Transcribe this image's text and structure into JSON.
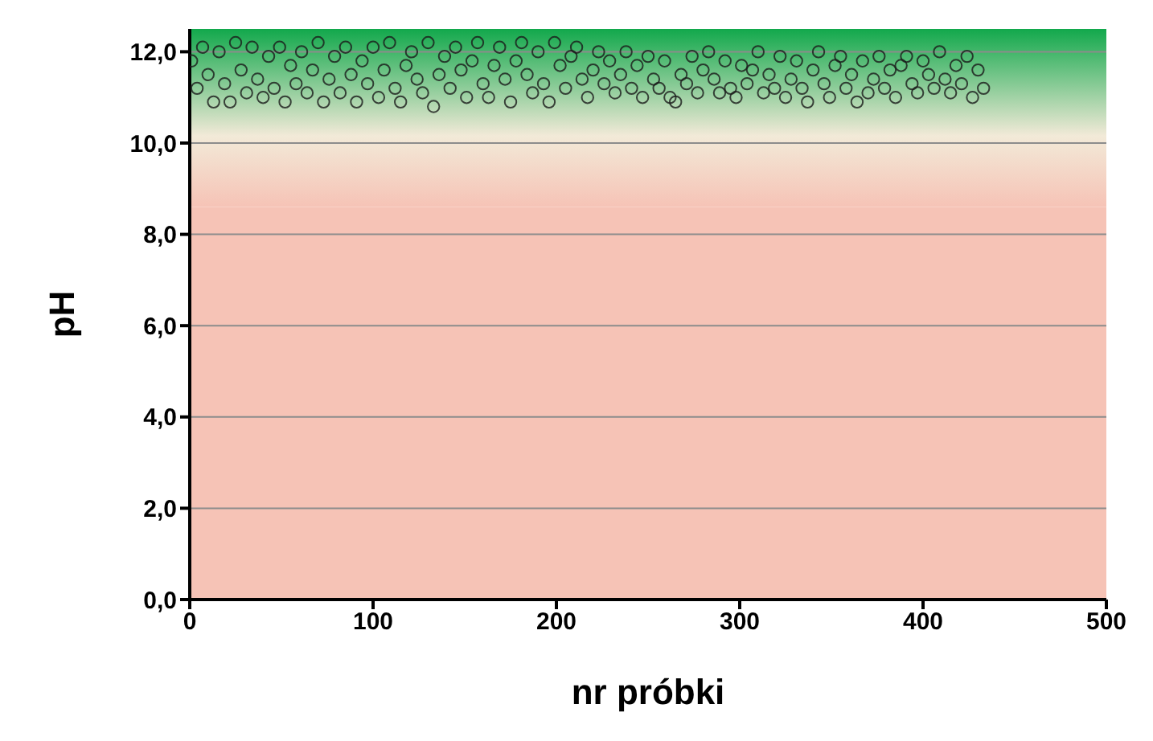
{
  "chart_data": {
    "type": "scatter",
    "xlabel": "nr próbki",
    "ylabel": "pH",
    "xlim": [
      0,
      500
    ],
    "xticks": [
      0,
      100,
      200,
      300,
      400,
      500
    ],
    "ylim": [
      0,
      12.5
    ],
    "yticks": [
      {
        "value": 0,
        "label": "0,0"
      },
      {
        "value": 2,
        "label": "2,0"
      },
      {
        "value": 4,
        "label": "4,0"
      },
      {
        "value": 6,
        "label": "6,0"
      },
      {
        "value": 8,
        "label": "8,0"
      },
      {
        "value": 10,
        "label": "10,0"
      },
      {
        "value": 12,
        "label": "12,0"
      }
    ],
    "grid": "y",
    "marker": "circle",
    "legend": false,
    "bands": [
      {
        "axis": "y",
        "from": 0,
        "to": 8.6,
        "color": "#f6c3b6"
      },
      {
        "axis": "y",
        "from": 8.6,
        "to": 12.5,
        "color": "#12a84c"
      }
    ],
    "series": [
      {
        "color": "#1a1a1a",
        "x": [
          1,
          4,
          7,
          10,
          13,
          16,
          19,
          22,
          25,
          28,
          31,
          34,
          37,
          40,
          43,
          46,
          49,
          52,
          55,
          58,
          61,
          64,
          67,
          70,
          73,
          76,
          79,
          82,
          85,
          88,
          91,
          94,
          97,
          100,
          103,
          106,
          109,
          112,
          115,
          118,
          121,
          124,
          127,
          130,
          133,
          136,
          139,
          142,
          145,
          148,
          151,
          154,
          157,
          160,
          163,
          166,
          169,
          172,
          175,
          178,
          181,
          184,
          187,
          190,
          193,
          196,
          199,
          202,
          205,
          208,
          211,
          214,
          217,
          220,
          223,
          226,
          229,
          232,
          235,
          238,
          241,
          244,
          247,
          250,
          253,
          256,
          259,
          262,
          265,
          268,
          271,
          274,
          277,
          280,
          283,
          286,
          289,
          292,
          295,
          298,
          301,
          304,
          307,
          310,
          313,
          316,
          319,
          322,
          325,
          328,
          331,
          334,
          337,
          340,
          343,
          346,
          349,
          352,
          355,
          358,
          361,
          364,
          367,
          370,
          373,
          376,
          379,
          382,
          385,
          388,
          391,
          394,
          397,
          400,
          403,
          406,
          409,
          412,
          415,
          418,
          421,
          424,
          427,
          430,
          433
        ],
        "values": [
          11.8,
          11.2,
          12.1,
          11.5,
          10.9,
          12.0,
          11.3,
          10.9,
          12.2,
          11.6,
          11.1,
          12.1,
          11.4,
          11.0,
          11.9,
          11.2,
          12.1,
          10.9,
          11.7,
          11.3,
          12.0,
          11.1,
          11.6,
          12.2,
          10.9,
          11.4,
          11.9,
          11.1,
          12.1,
          11.5,
          10.9,
          11.8,
          11.3,
          12.1,
          11.0,
          11.6,
          12.2,
          11.2,
          10.9,
          11.7,
          12.0,
          11.4,
          11.1,
          12.2,
          10.8,
          11.5,
          11.9,
          11.2,
          12.1,
          11.6,
          11.0,
          11.8,
          12.2,
          11.3,
          11.0,
          11.7,
          12.1,
          11.4,
          10.9,
          11.8,
          12.2,
          11.5,
          11.1,
          12.0,
          11.3,
          10.9,
          12.2,
          11.7,
          11.2,
          11.9,
          12.1,
          11.4,
          11.0,
          11.6,
          12.0,
          11.3,
          11.8,
          11.1,
          11.5,
          12.0,
          11.2,
          11.7,
          11.0,
          11.9,
          11.4,
          11.2,
          11.8,
          11.0,
          10.9,
          11.5,
          11.3,
          11.9,
          11.1,
          11.6,
          12.0,
          11.4,
          11.1,
          11.8,
          11.2,
          11.0,
          11.7,
          11.3,
          11.6,
          12.0,
          11.1,
          11.5,
          11.2,
          11.9,
          11.0,
          11.4,
          11.8,
          11.2,
          10.9,
          11.6,
          12.0,
          11.3,
          11.0,
          11.7,
          11.9,
          11.2,
          11.5,
          10.9,
          11.8,
          11.1,
          11.4,
          11.9,
          11.2,
          11.6,
          11.0,
          11.7,
          11.9,
          11.3,
          11.1,
          11.8,
          11.5,
          11.2,
          12.0,
          11.4,
          11.1,
          11.7,
          11.3,
          11.9,
          11.0,
          11.6,
          11.2
        ]
      }
    ]
  }
}
